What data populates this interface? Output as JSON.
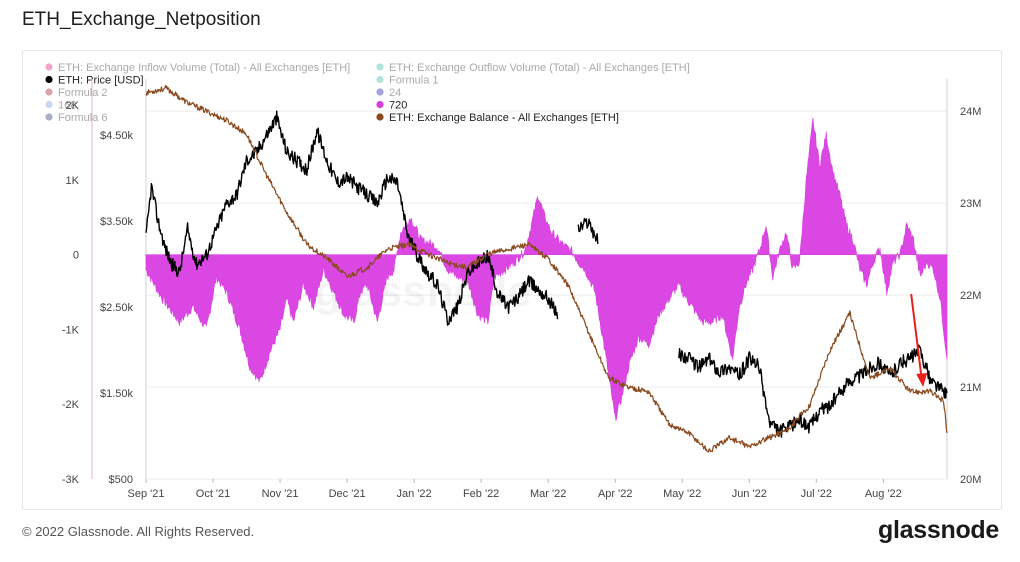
{
  "page": {
    "title": "ETH_Exchange_Netposition",
    "copyright": "© 2022 Glassnode. All Rights Reserved.",
    "brand": "glassnode",
    "watermark": "glassnode"
  },
  "chart_data": {
    "type": "line",
    "title": "ETH_Exchange_Netposition",
    "x_ticks": [
      "Sep '21",
      "Oct '21",
      "Nov '21",
      "Dec '21",
      "Jan '22",
      "Feb '22",
      "Mar '22",
      "Apr '22",
      "May '22",
      "Jun '22",
      "Jul '22",
      "Aug '22"
    ],
    "left_axis": {
      "ticks": [
        "2K",
        "1K",
        "0",
        "-1K",
        "-2K",
        "-3K"
      ],
      "values": [
        2000,
        1000,
        0,
        -1000,
        -2000,
        -3000
      ],
      "range": [
        -3000,
        2350
      ]
    },
    "price_axis": {
      "ticks": [
        "$4.50k",
        "$3.50k",
        "$2.50k",
        "$1.50k",
        "$500"
      ],
      "values": [
        4500,
        3500,
        2500,
        1500,
        500
      ],
      "range": [
        500,
        5150
      ]
    },
    "right_axis": {
      "ticks": [
        "24M",
        "23M",
        "22M",
        "21M",
        "20M"
      ],
      "values": [
        24,
        23,
        22,
        21,
        20
      ],
      "unit": "M",
      "range": [
        20,
        24.35
      ]
    },
    "legend": [
      {
        "name": "ETH: Exchange Inflow Volume (Total) - All Exchanges [ETH]",
        "color": "#e0348c",
        "dim": true
      },
      {
        "name": "ETH: Exchange Outflow Volume (Total) - All Exchanges [ETH]",
        "color": "#4fc4b4",
        "dim": true
      },
      {
        "name": "ETH: Price [USD]",
        "color": "#000000",
        "dim": false
      },
      {
        "name": "Formula 1",
        "color": "#4fc4b4",
        "dim": true
      },
      {
        "name": "Formula 2",
        "color": "#b23240",
        "dim": true
      },
      {
        "name": "24",
        "color": "#2d3ab0",
        "dim": true
      },
      {
        "name": "168",
        "color": "#8fa3e0",
        "dim": true
      },
      {
        "name": "720",
        "color": "#d83de0",
        "dim": false
      },
      {
        "name": "Formula 6",
        "color": "#3c4f7a",
        "dim": true
      },
      {
        "name": "ETH: Exchange Balance - All Exchanges [ETH]",
        "color": "#8a4a1e",
        "dim": false
      }
    ],
    "series": [
      {
        "name": "720",
        "axis": "left",
        "color": "#d83de0",
        "x": [
          0,
          0.25,
          0.5,
          0.7,
          0.9,
          1.05,
          1.2,
          1.4,
          1.55,
          1.7,
          1.85,
          2.0,
          2.1,
          2.2,
          2.35,
          2.5,
          2.65,
          2.8,
          2.95,
          3.1,
          3.2,
          3.3,
          3.45,
          3.6,
          3.7,
          3.8,
          3.95,
          4.1,
          4.25,
          4.35,
          4.5,
          4.65,
          4.8,
          4.95,
          5.1,
          5.2,
          5.35,
          5.5,
          5.65,
          5.75,
          5.85,
          5.95,
          6.05,
          6.2,
          6.35,
          6.45,
          6.55,
          6.7,
          6.85,
          7.0,
          7.1,
          7.2,
          7.35,
          7.5,
          7.65,
          7.8,
          7.95,
          8.0,
          8.15,
          8.3,
          8.45,
          8.6,
          8.75,
          8.85,
          8.95,
          9.05,
          9.15,
          9.25,
          9.35,
          9.45,
          9.55,
          9.65,
          9.75,
          9.85,
          9.95,
          10.05,
          10.15,
          10.25,
          10.35,
          10.45,
          10.55,
          10.65,
          10.75,
          10.85,
          10.95,
          11.05,
          11.15,
          11.25,
          11.35,
          11.45,
          11.55,
          11.65,
          11.75,
          11.85,
          11.95
        ],
        "values": [
          -200,
          -600,
          -900,
          -700,
          -1000,
          -300,
          -500,
          -1000,
          -1500,
          -1700,
          -1300,
          -1000,
          -600,
          -900,
          -400,
          -700,
          -200,
          -500,
          -800,
          -900,
          -500,
          -400,
          -900,
          -300,
          -200,
          300,
          500,
          200,
          150,
          100,
          -200,
          -300,
          -350,
          -800,
          -900,
          -300,
          -200,
          -100,
          50,
          400,
          800,
          500,
          300,
          150,
          50,
          -100,
          -200,
          -500,
          -1300,
          -2200,
          -1900,
          -1500,
          -1100,
          -1200,
          -800,
          -600,
          -400,
          -500,
          -700,
          -900,
          -900,
          -800,
          -1400,
          -700,
          -400,
          -200,
          50,
          400,
          -300,
          50,
          300,
          -200,
          -100,
          1000,
          1800,
          1200,
          1600,
          1100,
          800,
          400,
          200,
          -200,
          -400,
          -100,
          100,
          -500,
          -100,
          0,
          400,
          200,
          -300,
          -100,
          -200,
          -600,
          -1400
        ]
      },
      {
        "name": "ETH: Price [USD]",
        "axis": "price",
        "color": "#000000",
        "x": [
          0,
          0.08,
          0.18,
          0.28,
          0.38,
          0.5,
          0.62,
          0.75,
          0.9,
          1.05,
          1.2,
          1.35,
          1.5,
          1.65,
          1.8,
          1.95,
          2.1,
          2.25,
          2.4,
          2.55,
          2.7,
          2.85,
          3.0,
          3.15,
          3.3,
          3.45,
          3.6,
          3.75,
          3.9,
          4.05,
          4.2,
          4.35,
          4.5,
          4.65,
          4.8,
          4.95,
          5.1,
          5.25,
          5.4,
          5.55,
          5.7,
          5.85,
          6.0,
          6.15,
          6.3,
          6.45,
          6.6,
          6.75,
          6.9,
          7.05,
          7.2,
          7.35,
          7.5,
          7.65,
          7.8,
          7.95,
          8.1,
          8.25,
          8.4,
          8.55,
          8.7,
          8.85,
          9.0,
          9.15,
          9.3,
          9.45,
          9.6,
          9.75,
          9.9,
          10.05,
          10.2,
          10.35,
          10.5,
          10.65,
          10.8,
          10.95,
          11.1,
          11.25,
          11.4,
          11.55,
          11.7,
          11.85,
          11.95
        ],
        "values": [
          3300,
          3900,
          3500,
          3200,
          3000,
          2900,
          3400,
          3000,
          3100,
          3400,
          3700,
          3800,
          4200,
          4300,
          4500,
          4700,
          4300,
          4200,
          4100,
          4550,
          4200,
          3950,
          4000,
          3900,
          3800,
          3700,
          4000,
          3950,
          3350,
          3100,
          2900,
          2750,
          2350,
          2500,
          2900,
          3000,
          3100,
          2650,
          2500,
          2600,
          2800,
          2700,
          2600,
          2400,
          null,
          3400,
          3500,
          3250,
          null,
          null,
          null,
          null,
          null,
          null,
          null,
          1950,
          1900,
          1800,
          1900,
          1750,
          1800,
          1700,
          1900,
          1800,
          1150,
          1050,
          1100,
          1200,
          1100,
          1300,
          1350,
          1500,
          1650,
          1700,
          1800,
          1850,
          1700,
          1850,
          1900,
          2000,
          1650,
          1550,
          1500
        ]
      },
      {
        "name": "ETH: Exchange Balance - All Exchanges [ETH]",
        "axis": "right",
        "color": "#8a4a1e",
        "x": [
          0,
          0.3,
          0.6,
          0.9,
          1.2,
          1.5,
          1.8,
          2.1,
          2.4,
          2.7,
          3.0,
          3.3,
          3.6,
          3.9,
          4.2,
          4.5,
          4.8,
          5.1,
          5.4,
          5.7,
          6.0,
          6.3,
          6.6,
          6.9,
          7.2,
          7.5,
          7.8,
          8.1,
          8.4,
          8.7,
          9.0,
          9.3,
          9.6,
          9.9,
          10.2,
          10.5,
          10.8,
          11.1,
          11.4,
          11.7,
          11.9,
          11.95
        ],
        "values": [
          24.2,
          24.25,
          24.1,
          24.0,
          23.9,
          23.75,
          23.3,
          22.9,
          22.55,
          22.4,
          22.2,
          22.3,
          22.5,
          22.55,
          22.45,
          22.35,
          22.3,
          22.45,
          22.5,
          22.55,
          22.4,
          22.1,
          21.6,
          21.1,
          21.0,
          20.95,
          20.6,
          20.5,
          20.3,
          20.45,
          20.35,
          20.45,
          20.55,
          20.8,
          21.4,
          21.8,
          21.1,
          21.2,
          20.95,
          20.95,
          20.85,
          20.5
        ]
      }
    ],
    "annotation": {
      "type": "arrow",
      "color": "#e8211a",
      "direction": "down"
    }
  }
}
